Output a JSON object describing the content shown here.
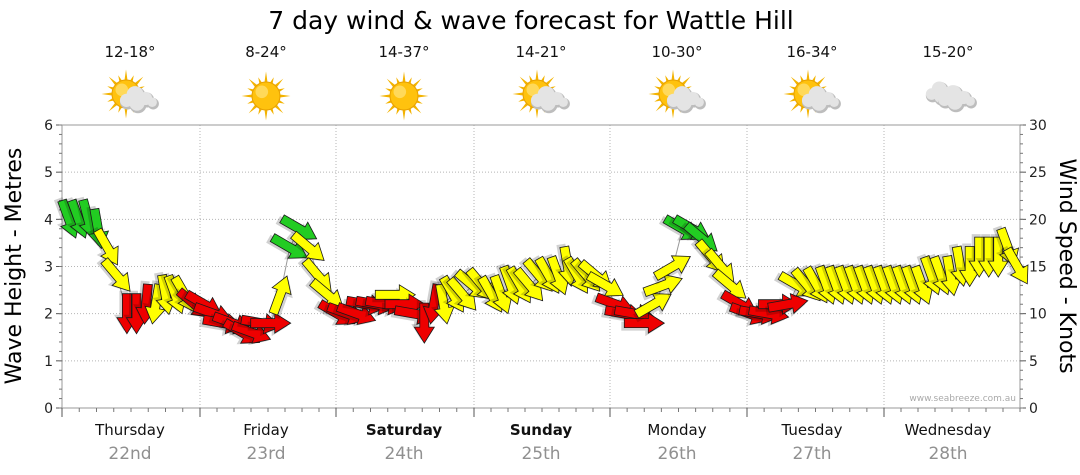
{
  "chart_data": {
    "type": "line",
    "title": "7 day wind & wave forecast for Wattle Hill",
    "ylabel_left": "Wave Height - Metres",
    "ylabel_right": "Wind Speed - Knots",
    "ylim_left": [
      0,
      6
    ],
    "ylim_right": [
      0,
      30
    ],
    "yticks_left": [
      "0",
      "1",
      "2",
      "3",
      "4",
      "5",
      "6"
    ],
    "yticks_right": [
      "0",
      "5",
      "10",
      "15",
      "20",
      "25",
      "30"
    ],
    "grid": true,
    "days": [
      {
        "name": "Thursday",
        "date": "22nd",
        "bold": false,
        "temp": "12-18°",
        "weather": "partly-cloudy"
      },
      {
        "name": "Friday",
        "date": "23rd",
        "bold": false,
        "temp": "8-24°",
        "weather": "sunny"
      },
      {
        "name": "Saturday",
        "date": "24th",
        "bold": true,
        "temp": "14-37°",
        "weather": "sunny"
      },
      {
        "name": "Sunday",
        "date": "25th",
        "bold": true,
        "temp": "14-21°",
        "weather": "partly-cloudy"
      },
      {
        "name": "Monday",
        "date": "26th",
        "bold": false,
        "temp": "10-30°",
        "weather": "partly-cloudy"
      },
      {
        "name": "Tuesday",
        "date": "27th",
        "bold": false,
        "temp": "16-34°",
        "weather": "partly-cloudy"
      },
      {
        "name": "Wednesday",
        "date": "28th",
        "bold": false,
        "temp": "15-20°",
        "weather": "cloudy"
      }
    ],
    "wind_series": {
      "name": "Wind",
      "units": "knots",
      "color_legend": {
        "green": "#22cc22",
        "yellow": "#ffff00",
        "red": "#ee0000"
      },
      "x_days": [
        0.05,
        0.12,
        0.19,
        0.26,
        0.33,
        0.4,
        0.47,
        0.54,
        0.61,
        0.68,
        0.75,
        0.82,
        0.89,
        0.96,
        1.03,
        1.1,
        1.17,
        1.24,
        1.31,
        1.38,
        1.45,
        1.52,
        1.59,
        1.66,
        1.73,
        1.8,
        1.87,
        1.94,
        2.01,
        2.08,
        2.15,
        2.22,
        2.29,
        2.36,
        2.43,
        2.5,
        2.57,
        2.64,
        2.71,
        2.78,
        2.85,
        2.92,
        2.99,
        3.06,
        3.13,
        3.2,
        3.27,
        3.34,
        3.41,
        3.48,
        3.55,
        3.62,
        3.69,
        3.76,
        3.83,
        3.9,
        3.97,
        4.04,
        4.11,
        4.18,
        4.25,
        4.32,
        4.39,
        4.46,
        4.53,
        4.6,
        4.67,
        4.74,
        4.81,
        4.88,
        4.95,
        5.02,
        5.09,
        5.16,
        5.23,
        5.3,
        5.37,
        5.44,
        5.51,
        5.58,
        5.65,
        5.72,
        5.79,
        5.86,
        5.93,
        6.0,
        6.07,
        6.14,
        6.21,
        6.28,
        6.35,
        6.42,
        6.49,
        6.56,
        6.63,
        6.7,
        6.77,
        6.84,
        6.91,
        6.98
      ],
      "speeds": [
        20,
        20,
        20,
        19,
        17,
        14,
        10,
        10,
        11,
        11,
        12,
        12,
        12,
        11,
        11,
        10,
        9,
        9,
        8,
        8,
        9,
        9,
        12,
        17,
        19,
        17,
        14,
        12,
        10,
        10,
        10,
        11,
        11,
        11,
        12,
        11,
        10,
        9,
        11,
        11,
        12,
        12,
        13,
        13,
        12,
        12,
        13,
        13,
        13,
        14,
        14,
        14,
        15,
        14,
        14,
        14,
        13,
        11,
        10,
        10,
        9,
        11,
        13,
        15,
        19,
        19,
        18,
        16,
        15,
        13,
        11,
        10,
        10,
        10,
        11,
        11,
        13,
        13,
        13,
        13,
        13,
        13,
        13,
        13,
        13,
        13,
        13,
        13,
        13,
        13,
        14,
        14,
        14,
        15,
        15,
        16,
        16,
        16,
        17,
        15
      ],
      "colors": [
        "green",
        "green",
        "green",
        "green",
        "yellow",
        "yellow",
        "red",
        "red",
        "red",
        "yellow",
        "yellow",
        "yellow",
        "yellow",
        "red",
        "red",
        "red",
        "red",
        "red",
        "red",
        "red",
        "red",
        "red",
        "yellow",
        "green",
        "green",
        "yellow",
        "yellow",
        "yellow",
        "red",
        "red",
        "red",
        "red",
        "red",
        "red",
        "yellow",
        "red",
        "red",
        "red",
        "red",
        "yellow",
        "yellow",
        "yellow",
        "yellow",
        "yellow",
        "yellow",
        "yellow",
        "yellow",
        "yellow",
        "yellow",
        "yellow",
        "yellow",
        "yellow",
        "yellow",
        "yellow",
        "yellow",
        "yellow",
        "yellow",
        "red",
        "red",
        "red",
        "red",
        "yellow",
        "yellow",
        "yellow",
        "green",
        "green",
        "green",
        "yellow",
        "yellow",
        "yellow",
        "red",
        "red",
        "red",
        "red",
        "red",
        "red",
        "yellow",
        "yellow",
        "yellow",
        "yellow",
        "yellow",
        "yellow",
        "yellow",
        "yellow",
        "yellow",
        "yellow",
        "yellow",
        "yellow",
        "yellow",
        "yellow",
        "yellow",
        "yellow",
        "yellow",
        "yellow",
        "yellow",
        "yellow",
        "yellow",
        "yellow",
        "yellow",
        "yellow"
      ],
      "direction_deg": [
        340,
        340,
        345,
        350,
        330,
        320,
        0,
        0,
        5,
        10,
        350,
        340,
        330,
        310,
        300,
        290,
        280,
        290,
        300,
        290,
        280,
        270,
        200,
        300,
        300,
        310,
        320,
        310,
        300,
        290,
        290,
        280,
        280,
        280,
        270,
        270,
        280,
        0,
        10,
        350,
        330,
        320,
        310,
        320,
        330,
        340,
        340,
        330,
        320,
        320,
        330,
        340,
        350,
        330,
        320,
        310,
        300,
        290,
        280,
        280,
        270,
        240,
        250,
        240,
        300,
        300,
        310,
        320,
        320,
        310,
        300,
        290,
        280,
        280,
        270,
        260,
        300,
        320,
        330,
        340,
        340,
        340,
        340,
        340,
        340,
        340,
        340,
        340,
        340,
        340,
        340,
        340,
        350,
        350,
        0,
        0,
        0,
        0,
        340,
        330
      ]
    },
    "credit": "www.seabreeze.com.au"
  }
}
